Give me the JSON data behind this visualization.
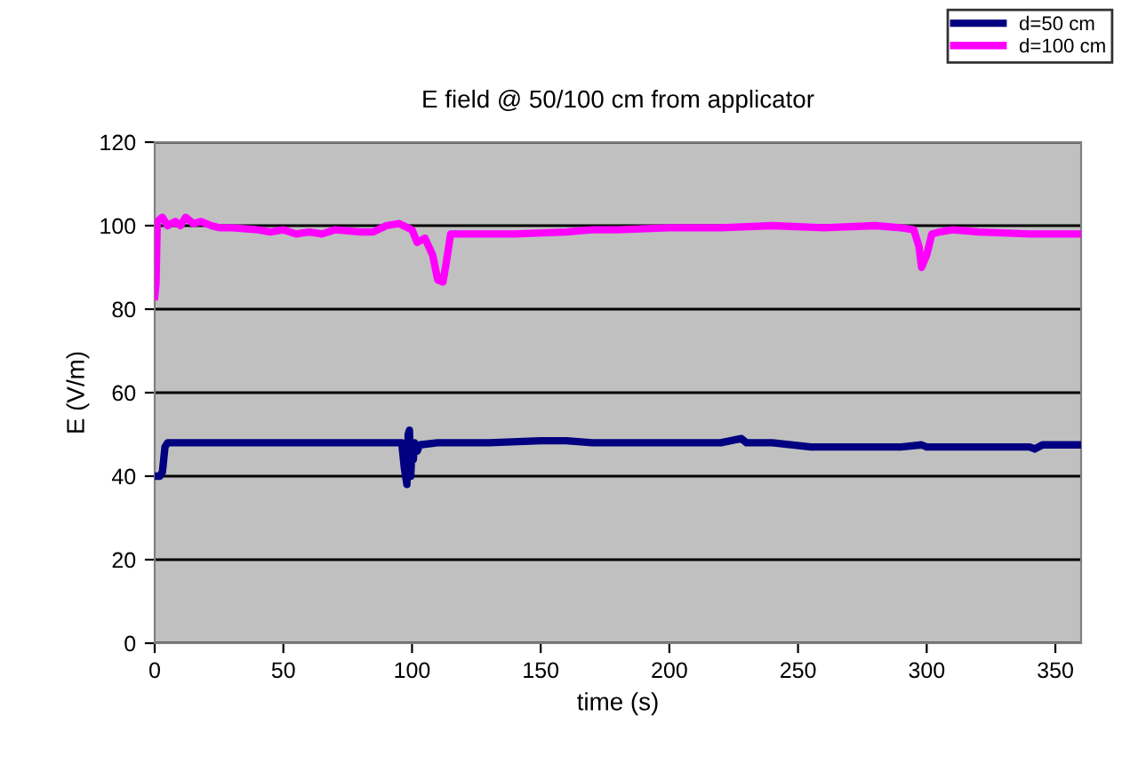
{
  "chart_data": {
    "type": "line",
    "title": "E field @ 50/100 cm from applicator",
    "xlabel": "time (s)",
    "ylabel": "E (V/m)",
    "xlim": [
      0,
      360
    ],
    "xticks": [
      0,
      50,
      100,
      150,
      200,
      250,
      300,
      350
    ],
    "ylim": [
      0,
      120
    ],
    "yticks": [
      0,
      20,
      40,
      60,
      80,
      100,
      120
    ],
    "grid": "y",
    "legend": "top right",
    "series": [
      {
        "name": "d=50 cm",
        "color": "#000080",
        "x": [
          0,
          1,
          2,
          3,
          4,
          5,
          6,
          20,
          40,
          60,
          80,
          96,
          97,
          98,
          98.5,
          99,
          99.5,
          100,
          100.5,
          101,
          102,
          103,
          110,
          130,
          150,
          160,
          170,
          180,
          200,
          220,
          228,
          230,
          240,
          255,
          270,
          290,
          298,
          300,
          320,
          340,
          342,
          345,
          350,
          360
        ],
        "values": [
          40,
          40,
          40,
          41,
          47,
          48,
          48,
          48,
          48,
          48,
          48,
          48,
          42,
          38,
          50,
          51,
          40,
          47,
          44,
          48,
          46,
          47.5,
          48,
          48,
          48.5,
          48.5,
          48,
          48,
          48,
          48,
          49,
          48,
          48,
          47,
          47,
          47,
          47.5,
          47,
          47,
          47,
          46.5,
          47.5,
          47.5,
          47.5
        ]
      },
      {
        "name": "d=100 cm",
        "color": "#ff00ff",
        "x": [
          0,
          0.5,
          1,
          3,
          5,
          8,
          10,
          12,
          15,
          18,
          22,
          25,
          30,
          40,
          45,
          50,
          55,
          60,
          65,
          70,
          80,
          85,
          90,
          95,
          100,
          102,
          105,
          108,
          110,
          112,
          113,
          115,
          120,
          140,
          160,
          170,
          180,
          200,
          220,
          240,
          260,
          280,
          290,
          295,
          297,
          298,
          300,
          302,
          305,
          310,
          320,
          340,
          360
        ],
        "values": [
          83,
          86,
          101,
          102,
          100,
          101,
          100,
          102,
          100.5,
          101,
          100,
          99.5,
          99.5,
          99,
          98.5,
          99,
          98,
          98.5,
          98,
          99,
          98.5,
          98.5,
          100,
          100.5,
          99,
          96,
          97,
          93,
          87,
          86.5,
          90,
          98,
          98,
          98,
          98.5,
          99,
          99,
          99.5,
          99.5,
          100,
          99.5,
          100,
          99.5,
          99,
          95,
          90,
          93,
          98,
          98.5,
          99,
          98.5,
          98,
          98
        ]
      }
    ]
  }
}
